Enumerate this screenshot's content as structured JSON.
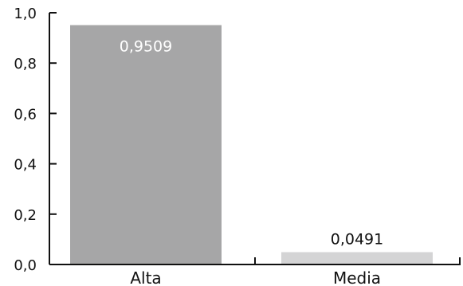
{
  "chart_data": {
    "type": "bar",
    "categories": [
      "Alta",
      "Media"
    ],
    "values": [
      0.9509,
      0.0491
    ],
    "value_labels": [
      "0,9509",
      "0,0491"
    ],
    "ylim": [
      0,
      1
    ],
    "yticks": [
      0.0,
      0.2,
      0.4,
      0.6,
      0.8,
      1.0
    ],
    "ytick_labels": [
      "0,0",
      "0,2",
      "0,4",
      "0,6",
      "0,8",
      "1,0"
    ],
    "title": "",
    "xlabel": "",
    "ylabel": "",
    "grid": false,
    "legend": "none",
    "bar_colors": [
      "#a6a6a7",
      "#d4d4d5"
    ],
    "label_colors": [
      "#ffffff",
      "#111111"
    ],
    "label_placement": [
      "inside-top",
      "above"
    ]
  }
}
